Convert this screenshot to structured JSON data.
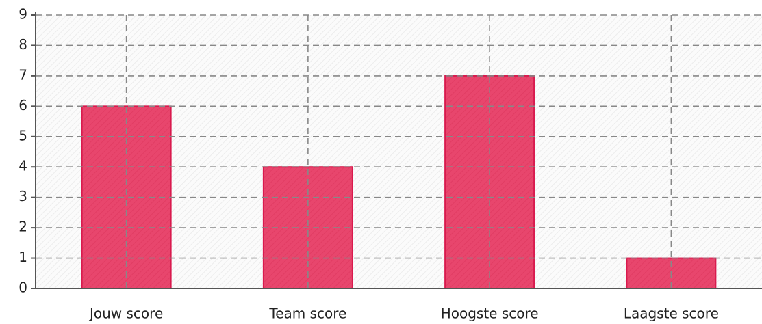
{
  "chart_data": {
    "type": "bar",
    "categories": [
      "Jouw score",
      "Team score",
      "Hoogste score",
      "Laagste score"
    ],
    "values": [
      6,
      4,
      7,
      1
    ],
    "color": "#e8466d",
    "ylim": [
      0,
      9
    ],
    "yticks": [
      0,
      1,
      2,
      3,
      4,
      5,
      6,
      7,
      8,
      9
    ],
    "grid": true
  }
}
